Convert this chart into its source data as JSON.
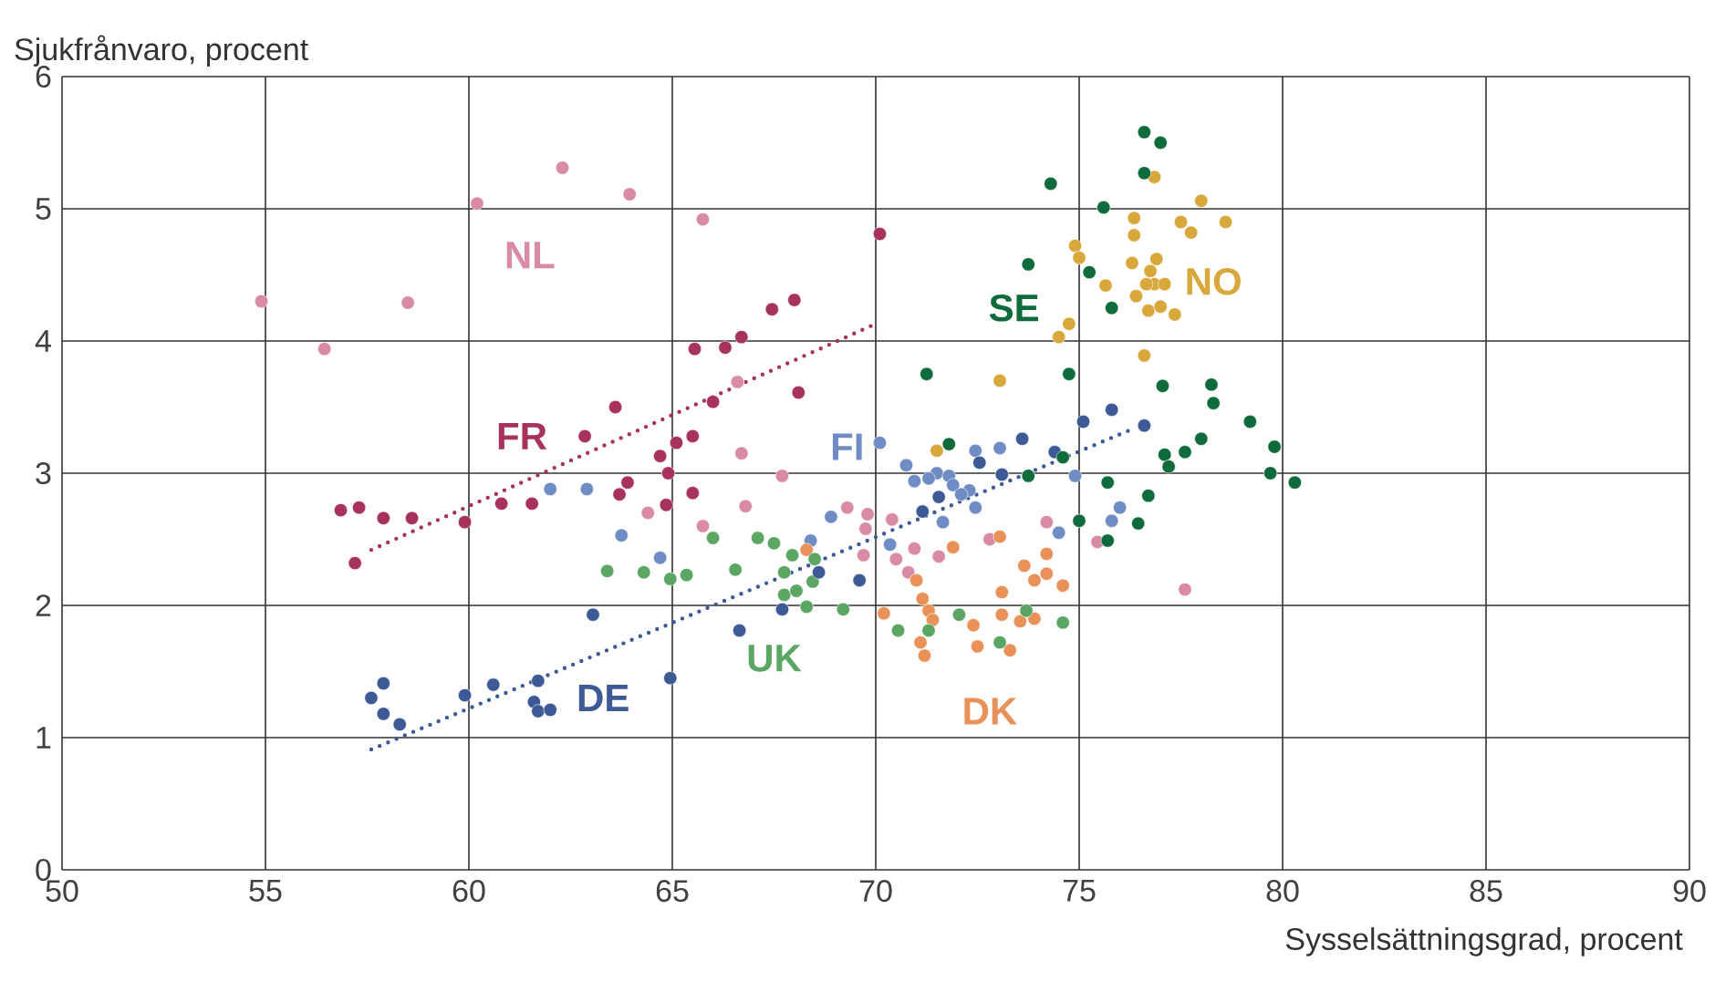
{
  "chart_data": {
    "type": "scatter",
    "xlabel": "Sysselsättningsgrad, procent",
    "ylabel": "Sjukfrånvaro, procent",
    "xlim": [
      50,
      90
    ],
    "ylim": [
      0,
      6
    ],
    "xticks": [
      50,
      55,
      60,
      65,
      70,
      75,
      80,
      85,
      90
    ],
    "yticks": [
      0,
      1,
      2,
      3,
      4,
      5,
      6
    ],
    "grid": true,
    "legend": false,
    "marker": "circle",
    "series": [
      {
        "name": "NL",
        "color": "#d98aa6",
        "x": [
          54.9,
          56.45,
          58.5,
          60.2,
          62.3,
          63.95,
          65.75,
          66.6,
          66.7,
          67.7,
          64.4,
          66.8,
          65.75,
          69.3,
          69.8,
          69.75,
          69.7,
          70.4,
          70.5,
          70.95,
          70.8,
          71.55,
          72.8,
          74.2,
          75.45,
          77.6
        ],
        "values": [
          4.3,
          3.94,
          4.29,
          5.04,
          5.31,
          5.11,
          4.92,
          3.69,
          3.15,
          2.98,
          2.7,
          2.75,
          2.6,
          2.74,
          2.69,
          2.58,
          2.38,
          2.65,
          2.35,
          2.43,
          2.25,
          2.37,
          2.5,
          2.63,
          2.48,
          2.12
        ]
      },
      {
        "name": "FI",
        "color": "#6f8cc4",
        "x": [
          70.1,
          70.75,
          71.5,
          70.95,
          71.3,
          71.8,
          71.9,
          72.3,
          72.45,
          72.1,
          73.05,
          72.45,
          74.9,
          76.0,
          75.8,
          74.5,
          71.65,
          68.9,
          68.4,
          70.35,
          62.0,
          62.9,
          63.75,
          64.7
        ],
        "values": [
          3.23,
          3.06,
          3.0,
          2.94,
          2.96,
          2.98,
          2.91,
          2.87,
          2.74,
          2.84,
          3.19,
          3.17,
          2.98,
          2.74,
          2.64,
          2.55,
          2.63,
          2.67,
          2.49,
          2.46,
          2.88,
          2.88,
          2.53,
          2.36
        ]
      },
      {
        "name": "NO",
        "color": "#d9a83c",
        "x": [
          78.0,
          78.6,
          77.5,
          77.75,
          76.35,
          76.35,
          74.9,
          75.0,
          76.3,
          76.9,
          76.75,
          76.85,
          77.1,
          76.65,
          76.4,
          76.7,
          77.0,
          77.35,
          75.65,
          74.75,
          74.5,
          76.6,
          73.05,
          71.5,
          76.85
        ],
        "values": [
          5.06,
          4.9,
          4.9,
          4.82,
          4.93,
          4.8,
          4.72,
          4.63,
          4.59,
          4.62,
          4.53,
          4.43,
          4.43,
          4.43,
          4.34,
          4.23,
          4.26,
          4.2,
          4.42,
          4.13,
          4.03,
          3.89,
          3.7,
          3.17,
          5.24
        ]
      },
      {
        "name": "DK",
        "color": "#e8925a",
        "x": [
          71.9,
          73.05,
          74.2,
          73.65,
          74.2,
          73.9,
          74.6,
          73.1,
          71.0,
          71.15,
          71.3,
          71.4,
          70.2,
          71.1,
          71.2,
          72.4,
          72.5,
          73.3,
          73.1,
          73.55,
          73.9,
          68.3
        ],
        "values": [
          2.44,
          2.52,
          2.39,
          2.3,
          2.24,
          2.19,
          2.15,
          2.1,
          2.19,
          2.05,
          1.96,
          1.89,
          1.94,
          1.72,
          1.62,
          1.85,
          1.69,
          1.66,
          1.93,
          1.88,
          1.9,
          2.42
        ]
      },
      {
        "name": "UK",
        "color": "#5aa662",
        "x": [
          63.4,
          64.3,
          64.95,
          65.35,
          66.0,
          66.55,
          67.1,
          67.5,
          67.95,
          67.75,
          68.5,
          67.75,
          68.05,
          68.45,
          68.3,
          69.2,
          70.55,
          71.3,
          72.05,
          73.05,
          73.7,
          74.6
        ],
        "values": [
          2.26,
          2.25,
          2.2,
          2.23,
          2.51,
          2.27,
          2.51,
          2.47,
          2.38,
          2.25,
          2.35,
          2.08,
          2.11,
          2.18,
          1.99,
          1.97,
          1.81,
          1.81,
          1.93,
          1.72,
          1.96,
          1.87
        ]
      },
      {
        "name": "FR",
        "color": "#a8325e",
        "x": [
          57.2,
          56.85,
          57.3,
          57.9,
          58.6,
          59.9,
          60.8,
          61.55,
          62.85,
          63.6,
          63.7,
          63.9,
          64.85,
          64.9,
          64.7,
          65.1,
          65.5,
          65.5,
          66.0,
          65.55,
          66.3,
          66.7,
          67.45,
          68.0,
          68.1,
          70.1
        ],
        "values": [
          2.32,
          2.72,
          2.74,
          2.66,
          2.66,
          2.63,
          2.77,
          2.77,
          3.28,
          3.5,
          2.84,
          2.93,
          2.76,
          3.0,
          3.13,
          3.23,
          3.28,
          2.85,
          3.54,
          3.94,
          3.95,
          4.03,
          4.24,
          4.31,
          3.61,
          4.81
        ]
      },
      {
        "name": "DE",
        "color": "#3d5a96",
        "x": [
          57.9,
          57.6,
          57.9,
          58.3,
          59.9,
          60.6,
          61.7,
          61.6,
          61.7,
          62.0,
          63.05,
          64.95,
          66.65,
          67.7,
          68.6,
          69.6,
          71.15,
          71.55,
          72.55,
          73.1,
          73.6,
          74.4,
          75.1,
          75.8,
          76.6
        ],
        "values": [
          1.41,
          1.3,
          1.18,
          1.1,
          1.32,
          1.4,
          1.43,
          1.27,
          1.2,
          1.21,
          1.93,
          1.45,
          1.81,
          1.97,
          2.25,
          2.19,
          2.71,
          2.82,
          3.08,
          2.99,
          3.26,
          3.16,
          3.39,
          3.48,
          3.36
        ]
      },
      {
        "name": "SE",
        "color": "#0f6b3c",
        "x": [
          74.3,
          75.6,
          76.6,
          77.0,
          76.6,
          73.75,
          75.25,
          75.8,
          71.25,
          74.75,
          77.05,
          78.25,
          78.3,
          79.2,
          79.8,
          79.7,
          80.3,
          78.0,
          77.6,
          77.1,
          77.2,
          71.8,
          74.6,
          73.75,
          75.7,
          76.7,
          75.0,
          76.45,
          75.7
        ],
        "values": [
          5.19,
          5.01,
          5.58,
          5.5,
          5.27,
          4.58,
          4.52,
          4.25,
          3.75,
          3.75,
          3.66,
          3.67,
          3.53,
          3.39,
          3.2,
          3.0,
          2.93,
          3.26,
          3.16,
          3.14,
          3.05,
          3.22,
          3.12,
          2.98,
          2.93,
          2.83,
          2.64,
          2.62,
          2.49
        ]
      },
      {
        "type": "line",
        "color": "#a8325e",
        "marker": "none",
        "line_style": "dotted",
        "x": [
          57.6,
          70.0
        ],
        "values": [
          2.42,
          4.13
        ]
      },
      {
        "type": "line",
        "color": "#3d5a96",
        "marker": "none",
        "line_style": "dotted",
        "x": [
          57.6,
          76.2
        ],
        "values": [
          0.91,
          3.32
        ]
      }
    ]
  }
}
